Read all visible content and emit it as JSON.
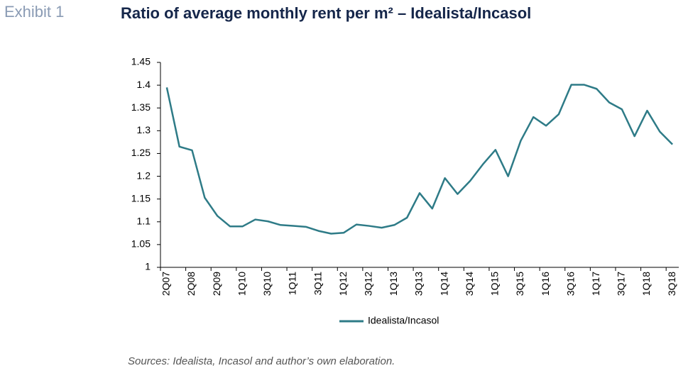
{
  "header": {
    "exhibit": "Exhibit 1",
    "source": "Sources: Idealista, Incasol and author’s own elaboration."
  },
  "chart_data": {
    "type": "line",
    "title": "Ratio of average monthly rent per m² – Idealista/Incasol",
    "categories": [
      "2Q07",
      null,
      "2Q08",
      null,
      "2Q09",
      null,
      "1Q10",
      null,
      "3Q10",
      null,
      "1Q11",
      null,
      "3Q11",
      null,
      "1Q12",
      null,
      "3Q12",
      null,
      "1Q13",
      null,
      "3Q13",
      null,
      "1Q14",
      null,
      "3Q14",
      null,
      "1Q15",
      null,
      "3Q15",
      null,
      "1Q16",
      null,
      "3Q16",
      null,
      "1Q17",
      null,
      "3Q17",
      null,
      "1Q18",
      null,
      "3Q18"
    ],
    "series": [
      {
        "name": "Idealista/Incasol",
        "color": "#2e7b87",
        "values": [
          1.395,
          1.265,
          1.257,
          1.153,
          1.113,
          1.09,
          1.09,
          1.105,
          1.101,
          1.093,
          1.091,
          1.089,
          1.08,
          1.074,
          1.076,
          1.094,
          1.091,
          1.087,
          1.093,
          1.109,
          1.163,
          1.129,
          1.196,
          1.161,
          1.19,
          1.226,
          1.258,
          1.2,
          1.278,
          1.33,
          1.311,
          1.336,
          1.401,
          1.401,
          1.392,
          1.362,
          1.347,
          1.288,
          1.344,
          1.298,
          1.27
        ]
      }
    ],
    "ylim": [
      1,
      1.45
    ],
    "yticks": [
      1,
      1.05,
      1.1,
      1.15,
      1.2,
      1.25,
      1.3,
      1.35,
      1.4,
      1.45
    ],
    "legend": "bottom"
  }
}
